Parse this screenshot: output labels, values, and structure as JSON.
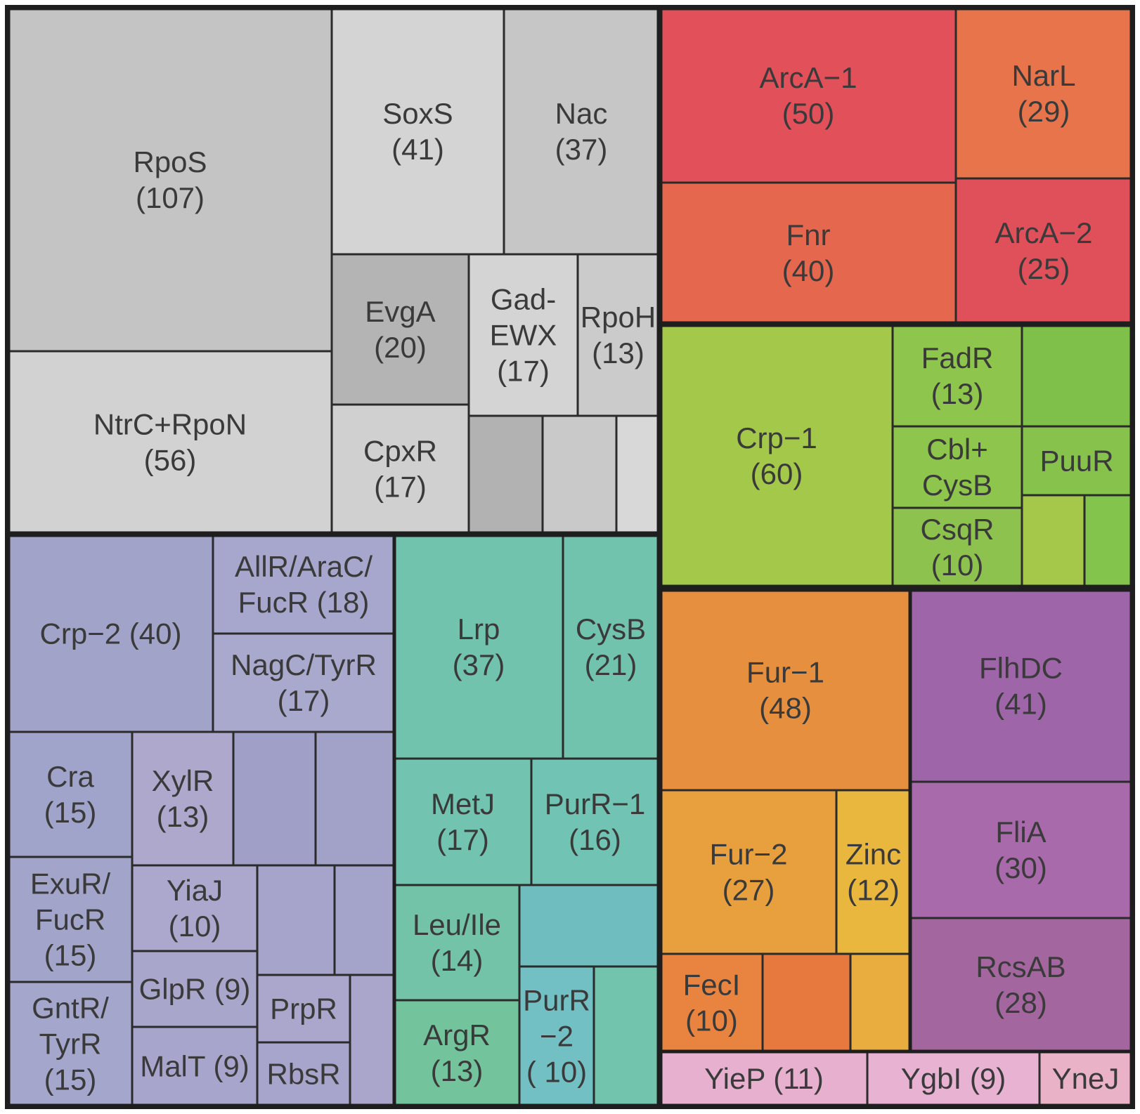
{
  "chart_data": {
    "type": "treemap",
    "title": "",
    "groups": [
      {
        "name": "gray",
        "items": [
          {
            "label": [
              "RpoS",
              "(107)"
            ],
            "value": 107,
            "color": "#c4c4c4"
          },
          {
            "label": [
              "NtrC+RpoN",
              "(56)"
            ],
            "value": 56,
            "color": "#d2d2d2"
          },
          {
            "label": [
              "SoxS",
              "(41)"
            ],
            "value": 41,
            "color": "#d4d4d4"
          },
          {
            "label": [
              "Nac",
              "(37)"
            ],
            "value": 37,
            "color": "#c6c6c6"
          },
          {
            "label": [
              "EvgA",
              "(20)"
            ],
            "value": 20,
            "color": "#b4b4b4"
          },
          {
            "label": [
              "Gad-",
              "EWX",
              "(17)"
            ],
            "value": 17,
            "color": "#d4d4d4"
          },
          {
            "label": [
              "RpoH",
              "(13)"
            ],
            "value": 13,
            "color": "#cbcbcb"
          },
          {
            "label": [
              "CpxR",
              "(17)"
            ],
            "value": 17,
            "color": "#d0d0d0"
          },
          {
            "label": [],
            "color": "#b2b2b2"
          },
          {
            "label": [],
            "color": "#c9c9c9"
          },
          {
            "label": [],
            "color": "#d8d8d8"
          }
        ]
      },
      {
        "name": "red",
        "items": [
          {
            "label": [
              "ArcA−1",
              "(50)"
            ],
            "value": 50,
            "color": "#e2505a"
          },
          {
            "label": [
              "NarL",
              "(29)"
            ],
            "value": 29,
            "color": "#e7744a"
          },
          {
            "label": [
              "Fnr",
              "(40)"
            ],
            "value": 40,
            "color": "#e4674e"
          },
          {
            "label": [
              "ArcA−2",
              "(25)"
            ],
            "value": 25,
            "color": "#e0505a"
          }
        ]
      },
      {
        "name": "green",
        "items": [
          {
            "label": [
              "Crp−1",
              "(60)"
            ],
            "value": 60,
            "color": "#a3c84a"
          },
          {
            "label": [
              "FadR",
              "(13)"
            ],
            "value": 13,
            "color": "#8ec54c"
          },
          {
            "label": [],
            "color": "#7fc04a"
          },
          {
            "label": [
              "Cbl+",
              "CysB"
            ],
            "color": "#8ec54c"
          },
          {
            "label": [
              "PuuR"
            ],
            "color": "#86c24c"
          },
          {
            "label": [
              "CsqR",
              "(10)"
            ],
            "value": 10,
            "color": "#8dc24e"
          },
          {
            "label": [],
            "color": "#a5c84a"
          },
          {
            "label": [],
            "color": "#83c44c"
          }
        ]
      },
      {
        "name": "purple",
        "items": [
          {
            "label": [
              "Crp−2 (40)"
            ],
            "value": 40,
            "color": "#a1a3c9"
          },
          {
            "label": [
              "AllR/AraC/",
              "FucR (18)"
            ],
            "value": 18,
            "color": "#a7a6cc"
          },
          {
            "label": [
              "NagC/TyrR",
              "(17)"
            ],
            "value": 17,
            "color": "#a9a8cd"
          },
          {
            "label": [
              "Cra",
              "(15)"
            ],
            "value": 15,
            "color": "#a1a4ca"
          },
          {
            "label": [
              "XylR",
              "(13)"
            ],
            "value": 13,
            "color": "#afa8cd"
          },
          {
            "label": [],
            "color": "#a09fc8"
          },
          {
            "label": [],
            "color": "#a2a2c9"
          },
          {
            "label": [
              "ExuR/",
              "FucR",
              "(15)"
            ],
            "value": 15,
            "color": "#a2a4ca"
          },
          {
            "label": [
              "YiaJ",
              "(10)"
            ],
            "value": 10,
            "color": "#aba7cd"
          },
          {
            "label": [],
            "color": "#a6a4cb"
          },
          {
            "label": [],
            "color": "#a4a3ca"
          },
          {
            "label": [
              "GntR/",
              "TyrR",
              "(15)"
            ],
            "value": 15,
            "color": "#a4a6cb"
          },
          {
            "label": [
              "GlpR (9)"
            ],
            "value": 9,
            "color": "#a9a6cc"
          },
          {
            "label": [
              "PrpR"
            ],
            "color": "#aaa6cc"
          },
          {
            "label": [],
            "color": "#a9a5cb"
          },
          {
            "label": [
              "MalT (9)"
            ],
            "value": 9,
            "color": "#a8a5cc"
          },
          {
            "label": [
              "RbsR"
            ],
            "color": "#a7a5cb"
          }
        ]
      },
      {
        "name": "teal",
        "items": [
          {
            "label": [
              "Lrp",
              "(37)"
            ],
            "value": 37,
            "color": "#71c3ae"
          },
          {
            "label": [
              "CysB",
              "(21)"
            ],
            "value": 21,
            "color": "#72c3ad"
          },
          {
            "label": [
              "MetJ",
              "(17)"
            ],
            "value": 17,
            "color": "#72c4b0"
          },
          {
            "label": [
              "PurR−1",
              "(16)"
            ],
            "value": 16,
            "color": "#71c3b3"
          },
          {
            "label": [
              "Leu/Ile",
              "(14)"
            ],
            "value": 14,
            "color": "#72c3a8"
          },
          {
            "label": [],
            "color": "#6fbdbf"
          },
          {
            "label": [
              "ArgR",
              "(13)"
            ],
            "value": 13,
            "color": "#73c49d"
          },
          {
            "label": [
              "PurR",
              "−2",
              "( 10)"
            ],
            "value": 10,
            "color": "#72c0c3"
          },
          {
            "label": [],
            "color": "#72c4ad"
          }
        ]
      },
      {
        "name": "orange",
        "items": [
          {
            "label": [
              "Fur−1",
              "(48)"
            ],
            "value": 48,
            "color": "#e68f3f"
          },
          {
            "label": [
              "Fur−2",
              "(27)"
            ],
            "value": 27,
            "color": "#e8a03f"
          },
          {
            "label": [
              "Zinc",
              "(12)"
            ],
            "value": 12,
            "color": "#e9b73e"
          },
          {
            "label": [
              "FecI",
              "(10)"
            ],
            "value": 10,
            "color": "#e88440"
          },
          {
            "label": [],
            "color": "#e8793e"
          },
          {
            "label": [],
            "color": "#e8ad3e"
          }
        ]
      },
      {
        "name": "violet",
        "items": [
          {
            "label": [
              "FlhDC",
              "(41)"
            ],
            "value": 41,
            "color": "#9e66a8"
          },
          {
            "label": [
              "FliA",
              "(30)"
            ],
            "value": 30,
            "color": "#a86aab"
          },
          {
            "label": [
              "RcsAB",
              "(28)"
            ],
            "value": 28,
            "color": "#a4669f"
          }
        ]
      },
      {
        "name": "pink",
        "items": [
          {
            "label": [
              "YieP (11)"
            ],
            "value": 11,
            "color": "#e7b0cf"
          },
          {
            "label": [
              "YgbI (9)"
            ],
            "value": 9,
            "color": "#e8b3d3"
          },
          {
            "label": [
              "YneJ"
            ],
            "color": "#e9b2c7"
          }
        ]
      }
    ]
  }
}
